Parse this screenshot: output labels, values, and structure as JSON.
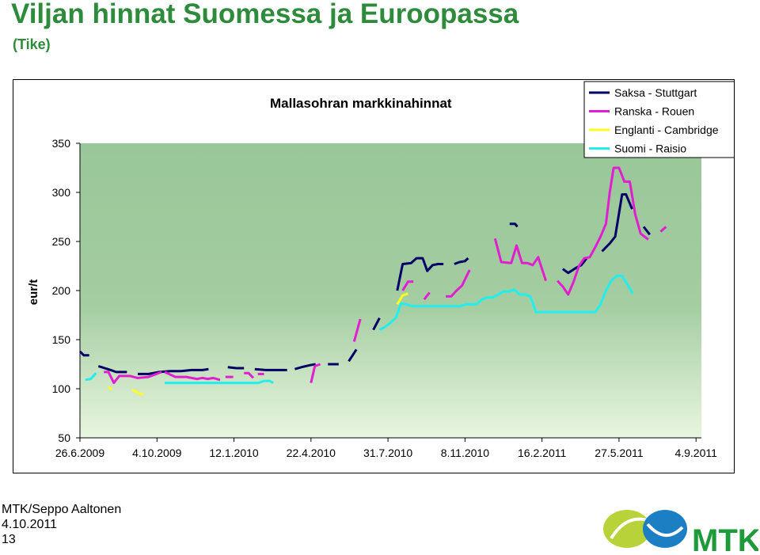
{
  "slide": {
    "title": "Viljan hinnat Suomessa ja Euroopassa",
    "subtitle": "(Tike)"
  },
  "footer": {
    "author": "MTK/Seppo Aaltonen",
    "date": "4.10.2011",
    "page": "13"
  },
  "logo": {
    "text": "MTK"
  },
  "colors": {
    "title": "#2e8b3c",
    "plot_top": "#99c799",
    "plot_bottom": "#e8f6df"
  },
  "chart_data": {
    "type": "line",
    "title": "Mallasohran markkinahinnat",
    "ylabel": "eur/t",
    "xlabel": "",
    "ylim": [
      50,
      350
    ],
    "yticks": [
      50,
      100,
      150,
      200,
      250,
      300,
      350
    ],
    "xlim": [
      "2009-06-26",
      "2011-09-11"
    ],
    "xticks": [
      "26.6.2009",
      "4.10.2009",
      "12.1.2010",
      "22.4.2010",
      "31.7.2010",
      "8.11.2010",
      "16.2.2011",
      "27.5.2011",
      "4.9.2011"
    ],
    "legend_position": "top-right",
    "series": [
      {
        "name": "Saksa - Stuttgart",
        "color": "#000066",
        "segments": [
          [
            [
              "2009-06-26",
              138
            ],
            [
              "2009-07-01",
              134
            ],
            [
              "2009-07-08",
              134
            ]
          ],
          [
            [
              "2009-07-20",
              123
            ],
            [
              "2009-08-05",
              119
            ],
            [
              "2009-08-12",
              117
            ],
            [
              "2009-08-26",
              117
            ]
          ],
          [
            [
              "2009-09-09",
              115
            ],
            [
              "2009-09-23",
              115
            ],
            [
              "2009-10-07",
              117
            ],
            [
              "2009-10-21",
              118
            ],
            [
              "2009-11-04",
              118
            ],
            [
              "2009-11-18",
              119
            ],
            [
              "2009-12-02",
              119
            ],
            [
              "2009-12-10",
              120
            ]
          ],
          [
            [
              "2010-01-04",
              122
            ],
            [
              "2010-01-15",
              121
            ],
            [
              "2010-01-25",
              121
            ]
          ],
          [
            [
              "2010-02-08",
              120
            ],
            [
              "2010-02-22",
              119
            ],
            [
              "2010-03-08",
              119
            ],
            [
              "2010-03-22",
              119
            ]
          ],
          [
            [
              "2010-04-01",
              120
            ],
            [
              "2010-04-10",
              122
            ],
            [
              "2010-04-21",
              124
            ],
            [
              "2010-04-28",
              125
            ]
          ],
          [
            [
              "2010-05-14",
              125
            ],
            [
              "2010-05-21",
              125
            ],
            [
              "2010-05-28",
              125
            ]
          ],
          [
            [
              "2010-06-10",
              128
            ],
            [
              "2010-06-20",
              140
            ]
          ],
          [
            [
              "2010-07-12",
              160
            ],
            [
              "2010-07-20",
              172
            ]
          ],
          [
            [
              "2010-08-12",
              200
            ],
            [
              "2010-08-19",
              227
            ],
            [
              "2010-08-30",
              228
            ],
            [
              "2010-09-06",
              233
            ],
            [
              "2010-09-14",
              233
            ],
            [
              "2010-09-20",
              220
            ],
            [
              "2010-09-27",
              226
            ],
            [
              "2010-10-04",
              227
            ],
            [
              "2010-10-11",
              227
            ]
          ],
          [
            [
              "2010-10-25",
              227
            ],
            [
              "2010-11-01",
              229
            ],
            [
              "2010-11-08",
              230
            ],
            [
              "2010-11-12",
              233
            ]
          ],
          [
            [
              "2011-01-05",
              268
            ],
            [
              "2011-01-12",
              268
            ],
            [
              "2011-01-15",
              265
            ]
          ],
          [
            [
              "2011-03-15",
              222
            ],
            [
              "2011-03-22",
              218
            ],
            [
              "2011-04-01",
              223
            ],
            [
              "2011-04-08",
              226
            ],
            [
              "2011-04-15",
              233
            ]
          ],
          [
            [
              "2011-05-05",
              240
            ],
            [
              "2011-05-15",
              248
            ],
            [
              "2011-05-22",
              255
            ],
            [
              "2011-05-31",
              298
            ],
            [
              "2011-06-05",
              298
            ],
            [
              "2011-06-13",
              283
            ]
          ],
          [
            [
              "2011-06-28",
              265
            ],
            [
              "2011-07-06",
              257
            ]
          ]
        ]
      },
      {
        "name": "Ranska - Rouen",
        "color": "#e020d0",
        "segments": [
          [
            [
              "2009-07-27",
              117
            ],
            [
              "2009-08-02",
              117
            ],
            [
              "2009-08-09",
              106
            ],
            [
              "2009-08-16",
              113
            ],
            [
              "2009-08-30",
              113
            ],
            [
              "2009-09-09",
              111
            ],
            [
              "2009-09-23",
              112
            ],
            [
              "2009-10-10",
              117
            ]
          ],
          [
            [
              "2009-10-14",
              117
            ],
            [
              "2009-10-28",
              112
            ],
            [
              "2009-11-11",
              112
            ],
            [
              "2009-11-25",
              110
            ],
            [
              "2009-12-02",
              111
            ],
            [
              "2009-12-09",
              110
            ],
            [
              "2009-12-16",
              111
            ],
            [
              "2009-12-25",
              109
            ]
          ],
          [
            [
              "2010-01-01",
              112
            ],
            [
              "2010-01-11",
              112
            ]
          ],
          [
            [
              "2010-01-25",
              116
            ],
            [
              "2010-01-31",
              116
            ],
            [
              "2010-02-06",
              111
            ]
          ],
          [
            [
              "2010-02-12",
              115
            ],
            [
              "2010-02-20",
              115
            ]
          ],
          [
            [
              "2010-04-22",
              106
            ],
            [
              "2010-04-27",
              123
            ],
            [
              "2010-05-04",
              125
            ]
          ],
          [
            [
              "2010-06-17",
              148
            ],
            [
              "2010-06-25",
              171
            ]
          ],
          [
            [
              "2010-08-19",
              200
            ],
            [
              "2010-08-26",
              209
            ],
            [
              "2010-09-02",
              209
            ]
          ],
          [
            [
              "2010-09-16",
              191
            ],
            [
              "2010-09-23",
              198
            ]
          ],
          [
            [
              "2010-10-14",
              194
            ],
            [
              "2010-10-21",
              194
            ],
            [
              "2010-10-28",
              200
            ],
            [
              "2010-11-04",
              205
            ],
            [
              "2010-11-14",
              221
            ]
          ],
          [
            [
              "2010-12-17",
              253
            ],
            [
              "2010-12-25",
              229
            ],
            [
              "2011-01-07",
              228
            ],
            [
              "2011-01-14",
              246
            ],
            [
              "2011-01-21",
              228
            ],
            [
              "2011-01-28",
              228
            ],
            [
              "2011-02-04",
              226
            ],
            [
              "2011-02-11",
              234
            ],
            [
              "2011-02-21",
              210
            ]
          ],
          [
            [
              "2011-03-08",
              210
            ],
            [
              "2011-03-15",
              204
            ],
            [
              "2011-03-22",
              196
            ],
            [
              "2011-03-29",
              209
            ],
            [
              "2011-04-05",
              225
            ],
            [
              "2011-04-12",
              233
            ],
            [
              "2011-04-19",
              234
            ],
            [
              "2011-04-26",
              244
            ],
            [
              "2011-05-03",
              255
            ],
            [
              "2011-05-10",
              268
            ],
            [
              "2011-05-15",
              300
            ],
            [
              "2011-05-20",
              325
            ],
            [
              "2011-05-27",
              325
            ],
            [
              "2011-06-03",
              311
            ],
            [
              "2011-06-10",
              311
            ],
            [
              "2011-06-17",
              278
            ],
            [
              "2011-06-24",
              258
            ],
            [
              "2011-07-04",
              252
            ]
          ],
          [
            [
              "2011-07-20",
              260
            ],
            [
              "2011-07-27",
              265
            ]
          ]
        ]
      },
      {
        "name": "Englanti - Cambridge",
        "color": "#ffff22",
        "segments": [
          [
            [
              "2009-08-02",
              102
            ],
            [
              "2009-08-06",
              99
            ]
          ],
          [
            [
              "2009-09-02",
              99
            ],
            [
              "2009-09-09",
              96
            ],
            [
              "2009-09-16",
              94
            ]
          ],
          [
            [
              "2010-08-12",
              186
            ],
            [
              "2010-08-19",
              195
            ],
            [
              "2010-08-26",
              197
            ]
          ]
        ]
      },
      {
        "name": "Suomi - Raisio",
        "color": "#22eeee",
        "segments": [
          [
            [
              "2009-07-03",
              109
            ],
            [
              "2009-07-10",
              110
            ],
            [
              "2009-07-17",
              116
            ]
          ],
          [
            [
              "2009-10-14",
              106
            ],
            [
              "2009-10-28",
              106
            ],
            [
              "2009-11-11",
              106
            ],
            [
              "2009-11-25",
              106
            ],
            [
              "2009-12-09",
              106
            ],
            [
              "2009-12-23",
              106
            ],
            [
              "2010-01-06",
              106
            ],
            [
              "2010-01-20",
              106
            ],
            [
              "2010-02-03",
              106
            ],
            [
              "2010-02-13",
              106
            ],
            [
              "2010-02-20",
              108
            ],
            [
              "2010-02-27",
              108
            ],
            [
              "2010-03-04",
              106
            ]
          ],
          [
            [
              "2010-07-20",
              160
            ],
            [
              "2010-07-27",
              163
            ],
            [
              "2010-08-03",
              167
            ],
            [
              "2010-08-10",
              172
            ],
            [
              "2010-08-17",
              187
            ],
            [
              "2010-08-24",
              186
            ],
            [
              "2010-08-31",
              184
            ],
            [
              "2010-09-07",
              184
            ],
            [
              "2010-09-21",
              184
            ],
            [
              "2010-10-05",
              184
            ],
            [
              "2010-10-19",
              184
            ],
            [
              "2010-11-02",
              184
            ],
            [
              "2010-11-09",
              186
            ],
            [
              "2010-11-16",
              186
            ],
            [
              "2010-11-23",
              186
            ],
            [
              "2010-11-30",
              191
            ],
            [
              "2010-12-07",
              193
            ],
            [
              "2010-12-14",
              193
            ],
            [
              "2010-12-21",
              196
            ],
            [
              "2010-12-28",
              199
            ],
            [
              "2011-01-04",
              199
            ],
            [
              "2011-01-11",
              201
            ],
            [
              "2011-01-18",
              196
            ],
            [
              "2011-01-25",
              196
            ],
            [
              "2011-02-01",
              194
            ],
            [
              "2011-02-08",
              178
            ],
            [
              "2011-02-22",
              178
            ],
            [
              "2011-03-08",
              178
            ],
            [
              "2011-03-22",
              178
            ],
            [
              "2011-04-05",
              178
            ],
            [
              "2011-04-19",
              178
            ],
            [
              "2011-04-26",
              178
            ],
            [
              "2011-05-03",
              186
            ],
            [
              "2011-05-10",
              200
            ],
            [
              "2011-05-17",
              210
            ],
            [
              "2011-05-24",
              215
            ],
            [
              "2011-05-31",
              215
            ],
            [
              "2011-06-07",
              206
            ],
            [
              "2011-06-14",
              197
            ]
          ]
        ]
      }
    ]
  }
}
